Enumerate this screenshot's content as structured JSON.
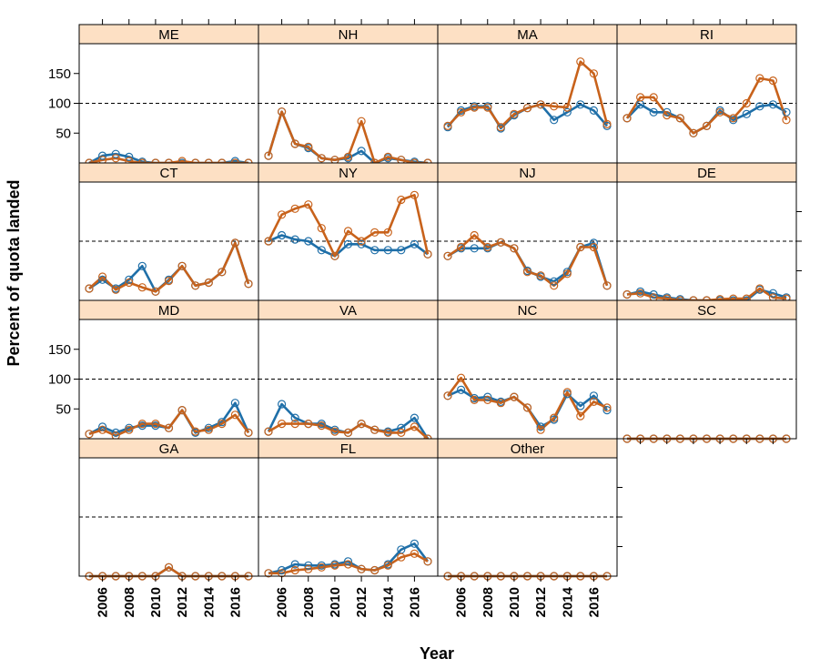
{
  "chart_data": {
    "type": "line",
    "layout": "trellis",
    "xlabel": "Year",
    "ylabel": "Percent of quota landed",
    "x": [
      2005,
      2006,
      2007,
      2008,
      2009,
      2010,
      2011,
      2012,
      2013,
      2014,
      2015,
      2016,
      2017
    ],
    "x_ticks": [
      "2006",
      "2008",
      "2010",
      "2012",
      "2014",
      "2016"
    ],
    "y_ticks": [
      "50",
      "100",
      "150"
    ],
    "ylim": [
      0,
      200
    ],
    "reference_line": 100,
    "colors": {
      "series_a": "#1f6fa8",
      "series_b": "#c8621b",
      "strip": "#fde0c4",
      "refline": "#000000"
    },
    "panels": [
      {
        "name": "ME",
        "a": [
          0,
          12,
          15,
          10,
          2,
          0,
          0,
          0,
          0,
          0,
          0,
          3,
          0
        ],
        "b": [
          0,
          5,
          8,
          3,
          0,
          0,
          0,
          3,
          0,
          0,
          0,
          0,
          0
        ]
      },
      {
        "name": "NH",
        "a": [
          12,
          86,
          32,
          25,
          8,
          5,
          8,
          20,
          0,
          8,
          5,
          2,
          0
        ],
        "b": [
          12,
          86,
          32,
          27,
          8,
          5,
          10,
          70,
          0,
          10,
          5,
          0,
          0
        ]
      },
      {
        "name": "MA",
        "a": [
          60,
          88,
          95,
          95,
          58,
          80,
          92,
          98,
          72,
          85,
          98,
          88,
          62
        ],
        "b": [
          62,
          85,
          93,
          93,
          60,
          82,
          92,
          98,
          95,
          93,
          170,
          150,
          65
        ]
      },
      {
        "name": "RI",
        "a": [
          75,
          98,
          85,
          85,
          75,
          50,
          62,
          88,
          72,
          82,
          95,
          98,
          85
        ],
        "b": [
          75,
          110,
          110,
          80,
          75,
          50,
          62,
          85,
          75,
          100,
          142,
          138,
          72
        ]
      },
      {
        "name": "CT",
        "a": [
          20,
          35,
          20,
          35,
          58,
          15,
          35,
          58,
          25,
          30,
          48,
          97,
          28
        ],
        "b": [
          20,
          40,
          18,
          30,
          22,
          15,
          33,
          58,
          25,
          30,
          48,
          97,
          28
        ]
      },
      {
        "name": "NY",
        "a": [
          100,
          110,
          103,
          100,
          85,
          75,
          95,
          95,
          85,
          85,
          85,
          95,
          78
        ],
        "b": [
          100,
          145,
          155,
          162,
          122,
          75,
          117,
          100,
          115,
          115,
          170,
          178,
          78
        ]
      },
      {
        "name": "NJ",
        "a": [
          75,
          88,
          88,
          88,
          98,
          88,
          50,
          40,
          32,
          48,
          90,
          97,
          25
        ],
        "b": [
          75,
          90,
          110,
          90,
          98,
          88,
          48,
          42,
          25,
          45,
          90,
          90,
          25
        ]
      },
      {
        "name": "DE",
        "a": [
          10,
          15,
          10,
          5,
          2,
          0,
          0,
          0,
          0,
          0,
          18,
          12,
          5
        ],
        "b": [
          10,
          12,
          5,
          3,
          0,
          0,
          0,
          2,
          3,
          3,
          20,
          5,
          3
        ]
      },
      {
        "name": "MD",
        "a": [
          8,
          20,
          10,
          18,
          22,
          22,
          18,
          48,
          10,
          18,
          28,
          60,
          10
        ],
        "b": [
          8,
          15,
          5,
          15,
          25,
          25,
          18,
          48,
          12,
          15,
          25,
          40,
          10
        ]
      },
      {
        "name": "VA",
        "a": [
          12,
          58,
          35,
          25,
          25,
          15,
          10,
          25,
          15,
          12,
          18,
          35,
          0
        ],
        "b": [
          12,
          25,
          25,
          25,
          22,
          12,
          10,
          25,
          15,
          10,
          10,
          20,
          0
        ]
      },
      {
        "name": "NC",
        "a": [
          72,
          82,
          68,
          70,
          62,
          70,
          52,
          20,
          32,
          75,
          55,
          72,
          48
        ],
        "b": [
          72,
          102,
          65,
          65,
          60,
          70,
          52,
          15,
          35,
          78,
          38,
          62,
          52
        ]
      },
      {
        "name": "SC",
        "a": [
          0,
          0,
          0,
          0,
          0,
          0,
          0,
          0,
          0,
          0,
          0,
          0,
          0
        ],
        "b": [
          0,
          0,
          0,
          0,
          0,
          0,
          0,
          0,
          0,
          0,
          0,
          0,
          0
        ]
      },
      {
        "name": "GA",
        "a": [
          0,
          0,
          0,
          0,
          0,
          0,
          15,
          0,
          0,
          0,
          0,
          0,
          0
        ],
        "b": [
          0,
          0,
          0,
          0,
          0,
          0,
          15,
          0,
          0,
          0,
          0,
          0,
          0
        ]
      },
      {
        "name": "FL",
        "a": [
          5,
          10,
          20,
          18,
          18,
          20,
          25,
          12,
          10,
          20,
          45,
          55,
          25
        ],
        "b": [
          5,
          5,
          10,
          12,
          15,
          18,
          20,
          12,
          10,
          18,
          32,
          38,
          25
        ]
      },
      {
        "name": "Other",
        "a": [
          0,
          0,
          0,
          0,
          0,
          0,
          0,
          0,
          0,
          0,
          0,
          0,
          0
        ],
        "b": [
          0,
          0,
          0,
          0,
          0,
          0,
          0,
          0,
          0,
          0,
          0,
          0,
          0
        ]
      }
    ]
  }
}
